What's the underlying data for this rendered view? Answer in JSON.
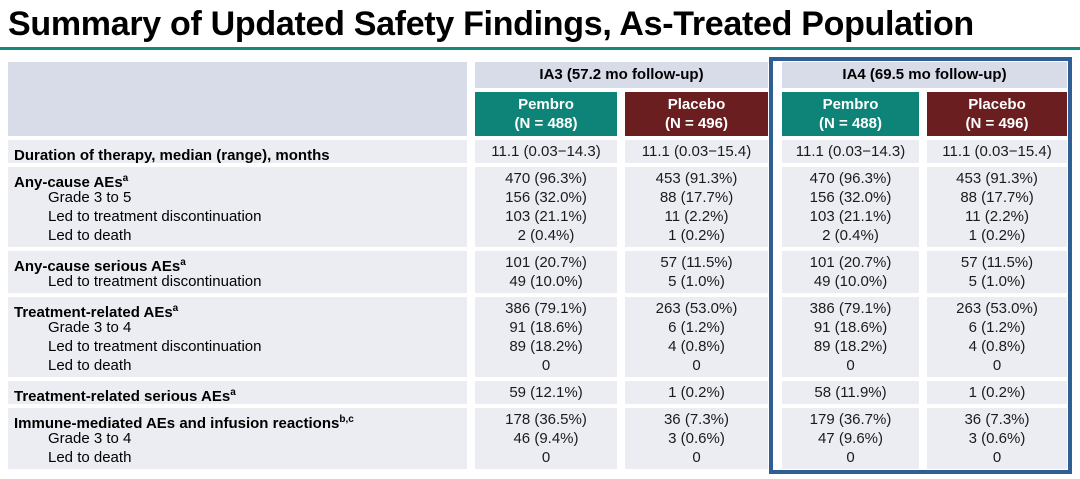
{
  "title": "Summary of Updated Safety Findings, As-Treated Population",
  "colors": {
    "title_rule_teal": "#15897d",
    "pembro_teal": "#0d8477",
    "placebo_maroon": "#6a1e1f",
    "header_band": "#d8dce8",
    "row_background": "#ecedf3",
    "ia4_highlight_border": "#2e5e94"
  },
  "header": {
    "groups": [
      {
        "label": "IA3 (57.2 mo follow-up)"
      },
      {
        "label": "IA4 (69.5 mo follow-up)"
      }
    ],
    "arms": [
      {
        "name": "Pembro",
        "n": "(N = 488)"
      },
      {
        "name": "Placebo",
        "n": "(N = 496)"
      },
      {
        "name": "Pembro",
        "n": "(N = 488)"
      },
      {
        "name": "Placebo",
        "n": "(N = 496)"
      }
    ]
  },
  "groups": [
    {
      "rows": [
        {
          "label": "Duration of therapy, median (range), months",
          "sup": "",
          "values": [
            "11.1 (0.03−14.3)",
            "11.1 (0.03−15.4)",
            "11.1 (0.03−14.3)",
            "11.1 (0.03−15.4)"
          ]
        }
      ]
    },
    {
      "rows": [
        {
          "label": "Any-cause AEs",
          "sup": "a",
          "values": [
            "470 (96.3%)",
            "453 (91.3%)",
            "470 (96.3%)",
            "453 (91.3%)"
          ]
        },
        {
          "label": "Grade 3 to 5",
          "sup": "",
          "values": [
            "156 (32.0%)",
            "88 (17.7%)",
            "156 (32.0%)",
            "88 (17.7%)"
          ]
        },
        {
          "label": "Led to treatment discontinuation",
          "sup": "",
          "values": [
            "103 (21.1%)",
            "11 (2.2%)",
            "103 (21.1%)",
            "11 (2.2%)"
          ]
        },
        {
          "label": "Led to death",
          "sup": "",
          "values": [
            "2 (0.4%)",
            "1 (0.2%)",
            "2 (0.4%)",
            "1 (0.2%)"
          ]
        }
      ]
    },
    {
      "rows": [
        {
          "label": "Any-cause serious AEs",
          "sup": "a",
          "values": [
            "101 (20.7%)",
            "57 (11.5%)",
            "101 (20.7%)",
            "57 (11.5%)"
          ]
        },
        {
          "label": "Led to treatment discontinuation",
          "sup": "",
          "values": [
            "49 (10.0%)",
            "5 (1.0%)",
            "49 (10.0%)",
            "5 (1.0%)"
          ]
        }
      ]
    },
    {
      "rows": [
        {
          "label": "Treatment-related AEs",
          "sup": "a",
          "values": [
            "386 (79.1%)",
            "263 (53.0%)",
            "386 (79.1%)",
            "263 (53.0%)"
          ]
        },
        {
          "label": "Grade 3 to 4",
          "sup": "",
          "values": [
            "91 (18.6%)",
            "6 (1.2%)",
            "91 (18.6%)",
            "6 (1.2%)"
          ]
        },
        {
          "label": "Led to treatment discontinuation",
          "sup": "",
          "values": [
            "89 (18.2%)",
            "4 (0.8%)",
            "89 (18.2%)",
            "4 (0.8%)"
          ]
        },
        {
          "label": "Led to death",
          "sup": "",
          "values": [
            "0",
            "0",
            "0",
            "0"
          ]
        }
      ]
    },
    {
      "rows": [
        {
          "label": "Treatment-related serious AEs",
          "sup": "a",
          "values": [
            "59 (12.1%)",
            "1 (0.2%)",
            "58 (11.9%)",
            "1 (0.2%)"
          ]
        }
      ]
    },
    {
      "rows": [
        {
          "label": "Immune-mediated AEs and infusion reactions",
          "sup": "b,c",
          "values": [
            "178 (36.5%)",
            "36 (7.3%)",
            "179 (36.7%)",
            "36 (7.3%)"
          ]
        },
        {
          "label": "Grade 3 to 4",
          "sup": "",
          "values": [
            "46 (9.4%)",
            "3 (0.6%)",
            "47 (9.6%)",
            "3 (0.6%)"
          ]
        },
        {
          "label": "Led to death",
          "sup": "",
          "values": [
            "0",
            "0",
            "0",
            "0"
          ]
        }
      ]
    }
  ]
}
